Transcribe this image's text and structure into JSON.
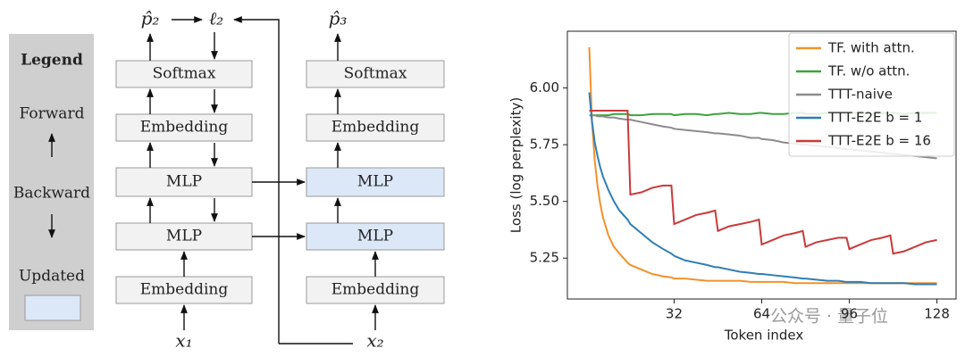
{
  "diagram": {
    "legend": {
      "title": "Legend",
      "forward": "Forward",
      "backward": "Backward",
      "updated": "Updated"
    },
    "column1": {
      "top_left": "p̂₂",
      "top_right": "ℓ₂",
      "input": "x₁",
      "boxes": [
        "Softmax",
        "Embedding",
        "MLP",
        "MLP",
        "Embedding"
      ]
    },
    "column2": {
      "top": "p̂₃",
      "input": "x₂",
      "boxes": [
        "Softmax",
        "Embedding",
        "MLP",
        "MLP",
        "Embedding"
      ]
    }
  },
  "chart_data": {
    "type": "line",
    "x_label": "Token index",
    "y_label": "Loss (log perplexity)",
    "x": [
      1,
      2,
      3,
      4,
      5,
      6,
      8,
      10,
      12,
      15,
      16,
      20,
      24,
      28,
      31,
      32,
      36,
      40,
      44,
      47,
      48,
      52,
      56,
      60,
      63,
      64,
      68,
      72,
      76,
      79,
      80,
      84,
      88,
      92,
      95,
      96,
      100,
      104,
      108,
      111,
      112,
      116,
      120,
      124,
      128
    ],
    "xlim": [
      -7,
      135
    ],
    "xticks": [
      32,
      64,
      96,
      128
    ],
    "ylim": [
      5.07,
      6.25
    ],
    "yticks": [
      {
        "value": 6.0,
        "label": "6.00"
      },
      5.75,
      {
        "value": 5.5,
        "label": "5.50"
      },
      5.25
    ],
    "legend_position": "upper right",
    "series": [
      {
        "name": "TF. with attn.",
        "color": "#f0922b",
        "values": [
          6.18,
          5.85,
          5.68,
          5.57,
          5.49,
          5.43,
          5.35,
          5.3,
          5.27,
          5.23,
          5.22,
          5.2,
          5.18,
          5.17,
          5.165,
          5.16,
          5.16,
          5.155,
          5.15,
          5.15,
          5.15,
          5.15,
          5.15,
          5.145,
          5.145,
          5.145,
          5.145,
          5.145,
          5.14,
          5.14,
          5.14,
          5.14,
          5.14,
          5.14,
          5.14,
          5.14,
          5.14,
          5.14,
          5.14,
          5.14,
          5.14,
          5.14,
          5.14,
          5.14,
          5.14
        ]
      },
      {
        "name": "TF. w/o attn.",
        "color": "#3ca33c",
        "values": [
          5.88,
          5.88,
          5.88,
          5.88,
          5.88,
          5.88,
          5.88,
          5.885,
          5.885,
          5.885,
          5.88,
          5.88,
          5.885,
          5.885,
          5.885,
          5.88,
          5.885,
          5.885,
          5.88,
          5.885,
          5.885,
          5.89,
          5.885,
          5.885,
          5.89,
          5.89,
          5.885,
          5.885,
          5.89,
          5.89,
          5.885,
          5.885,
          5.89,
          5.89,
          5.885,
          5.89,
          5.89,
          5.885,
          5.89,
          5.89,
          5.89,
          5.885,
          5.89,
          5.89,
          5.89
        ]
      },
      {
        "name": "TTT-naive",
        "color": "#8c8c8c",
        "values": [
          5.88,
          5.88,
          5.88,
          5.875,
          5.875,
          5.875,
          5.87,
          5.87,
          5.865,
          5.86,
          5.86,
          5.85,
          5.84,
          5.83,
          5.825,
          5.82,
          5.815,
          5.81,
          5.805,
          5.8,
          5.8,
          5.795,
          5.79,
          5.78,
          5.78,
          5.775,
          5.77,
          5.76,
          5.755,
          5.75,
          5.75,
          5.745,
          5.74,
          5.735,
          5.73,
          5.73,
          5.725,
          5.72,
          5.715,
          5.71,
          5.71,
          5.705,
          5.7,
          5.695,
          5.69
        ]
      },
      {
        "name": "TTT-E2E b = 1",
        "color": "#2f7db5",
        "values": [
          5.98,
          5.85,
          5.76,
          5.7,
          5.65,
          5.61,
          5.55,
          5.5,
          5.46,
          5.42,
          5.4,
          5.36,
          5.32,
          5.29,
          5.27,
          5.26,
          5.24,
          5.23,
          5.22,
          5.21,
          5.21,
          5.2,
          5.19,
          5.185,
          5.18,
          5.18,
          5.175,
          5.17,
          5.165,
          5.16,
          5.16,
          5.155,
          5.15,
          5.15,
          5.145,
          5.145,
          5.145,
          5.14,
          5.14,
          5.14,
          5.14,
          5.14,
          5.135,
          5.135,
          5.135
        ]
      },
      {
        "name": "TTT-E2E b = 16",
        "color": "#c93a3a",
        "values": [
          5.9,
          5.9,
          5.9,
          5.9,
          5.9,
          5.9,
          5.9,
          5.9,
          5.9,
          5.9,
          5.53,
          5.54,
          5.56,
          5.57,
          5.57,
          5.4,
          5.42,
          5.44,
          5.45,
          5.46,
          5.37,
          5.39,
          5.4,
          5.41,
          5.42,
          5.31,
          5.33,
          5.35,
          5.36,
          5.37,
          5.3,
          5.32,
          5.33,
          5.34,
          5.34,
          5.29,
          5.31,
          5.33,
          5.34,
          5.35,
          5.27,
          5.28,
          5.3,
          5.32,
          5.33
        ]
      }
    ],
    "watermark": "公众号 · 量子位"
  }
}
